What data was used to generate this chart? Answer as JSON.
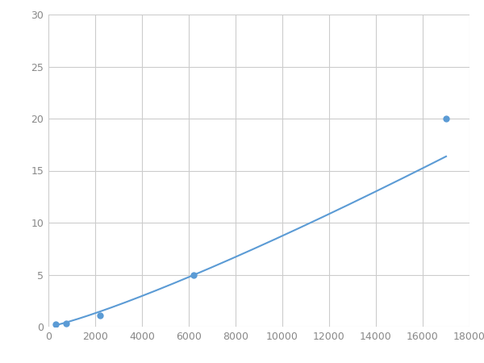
{
  "x": [
    300,
    750,
    2200,
    6200,
    17000
  ],
  "y": [
    0.2,
    0.3,
    1.1,
    5.0,
    20.0
  ],
  "line_color": "#5b9bd5",
  "marker_color": "#5b9bd5",
  "marker_size": 6,
  "line_width": 1.5,
  "xlim": [
    0,
    18000
  ],
  "ylim": [
    0,
    30
  ],
  "xticks": [
    0,
    2000,
    4000,
    6000,
    8000,
    10000,
    12000,
    14000,
    16000,
    18000
  ],
  "yticks": [
    0,
    5,
    10,
    15,
    20,
    25,
    30
  ],
  "grid_color": "#cccccc",
  "background_color": "#ffffff",
  "tick_fontsize": 9
}
